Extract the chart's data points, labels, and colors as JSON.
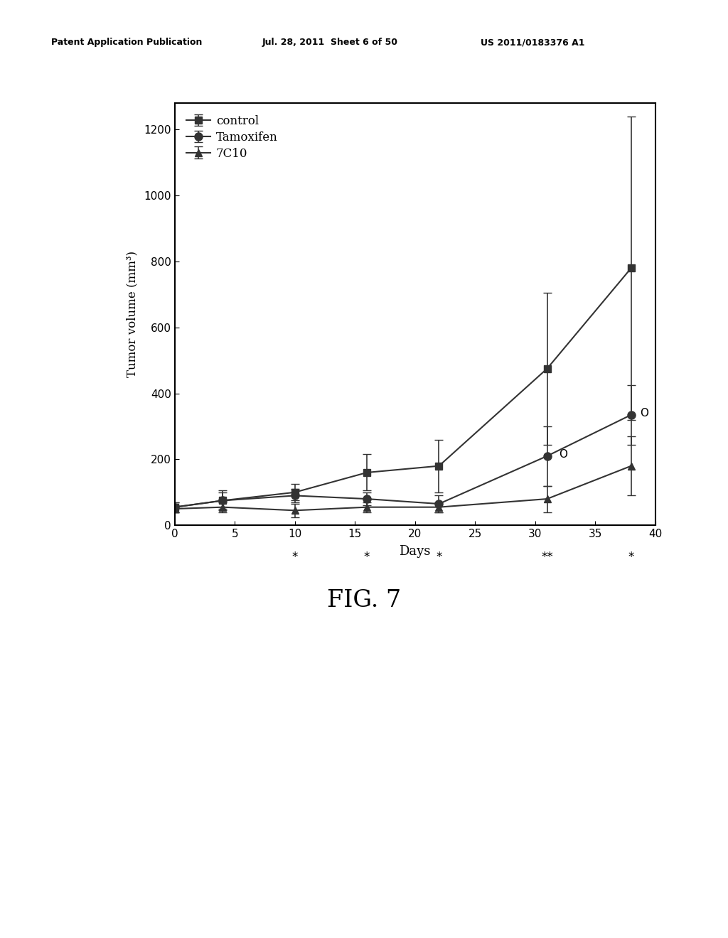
{
  "header_left": "Patent Application Publication",
  "header_mid": "Jul. 28, 2011  Sheet 6 of 50",
  "header_right": "US 2011/0183376 A1",
  "xlabel": "Days",
  "ylabel": "Tumor volume (mm³)",
  "xlim": [
    0,
    40
  ],
  "ylim": [
    0,
    1280
  ],
  "yticks": [
    0,
    200,
    400,
    600,
    800,
    1000,
    1200
  ],
  "xticks": [
    0,
    5,
    10,
    15,
    20,
    25,
    30,
    35,
    40
  ],
  "control_x": [
    0,
    4,
    10,
    16,
    22,
    31,
    38
  ],
  "control_y": [
    55,
    75,
    100,
    160,
    180,
    475,
    780
  ],
  "control_yerr": [
    15,
    30,
    25,
    55,
    80,
    230,
    460
  ],
  "tamoxifen_x": [
    0,
    4,
    10,
    16,
    22,
    31,
    38
  ],
  "tamoxifen_y": [
    55,
    75,
    90,
    80,
    65,
    210,
    335
  ],
  "tamoxifen_yerr": [
    15,
    25,
    20,
    20,
    25,
    90,
    90
  ],
  "antibody_x": [
    0,
    4,
    10,
    16,
    22,
    31,
    38
  ],
  "antibody_y": [
    50,
    55,
    45,
    55,
    55,
    80,
    180
  ],
  "antibody_yerr": [
    10,
    15,
    20,
    15,
    15,
    40,
    90
  ],
  "fig_label": "FIG. 7",
  "line_color": "#333333",
  "bg_color": "#ffffff"
}
